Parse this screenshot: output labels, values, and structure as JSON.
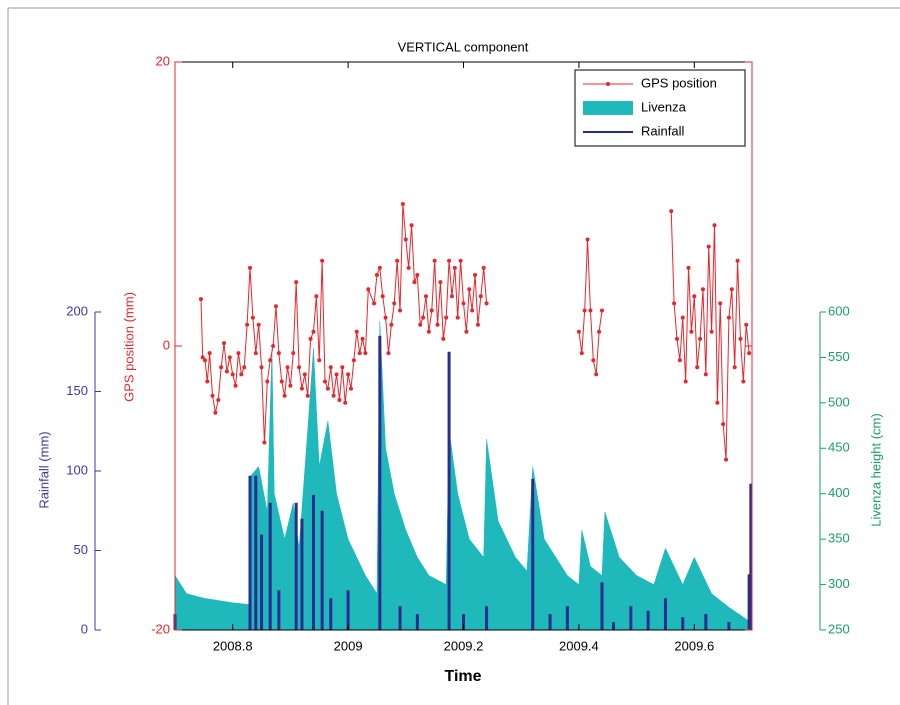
{
  "chart_data": {
    "type": "line",
    "title": "VERTICAL component",
    "xlabel": "Time",
    "ylabel": "GPS position (mm)",
    "y2label": "Livenza height (cm)",
    "y3label": "Rainfall (mm)",
    "xlim": [
      2008.7,
      2009.7
    ],
    "xticks": [
      2008.8,
      2009,
      2009.2,
      2009.4,
      2009.6
    ],
    "ylim": [
      -20,
      20
    ],
    "yticks": [
      -20,
      0,
      20
    ],
    "y2lim": [
      250,
      600
    ],
    "y2ticks": [
      250,
      300,
      350,
      400,
      450,
      500,
      550,
      600
    ],
    "y3lim": [
      0,
      200
    ],
    "y3ticks": [
      0,
      50,
      100,
      150,
      200
    ],
    "legend": "upper right",
    "grid": false,
    "series": [
      {
        "name": "GPS position",
        "type": "line",
        "color": "#e8262b",
        "x": [
          2008.745,
          2008.748,
          2008.752,
          2008.756,
          2008.76,
          2008.765,
          2008.77,
          2008.775,
          2008.78,
          2008.785,
          2008.79,
          2008.795,
          2008.8,
          2008.805,
          2008.81,
          2008.815,
          2008.82,
          2008.825,
          2008.83,
          2008.835,
          2008.84,
          2008.845,
          2008.85,
          2008.855,
          2008.86,
          2008.865,
          2008.87,
          2008.875,
          2008.88,
          2008.885,
          2008.89,
          2008.895,
          2008.9,
          2008.905,
          2008.91,
          2008.915,
          2008.92,
          2008.925,
          2008.93,
          2008.935,
          2008.94,
          2008.945,
          2008.95,
          2008.955,
          2008.96,
          2008.965,
          2008.97,
          2008.975,
          2008.98,
          2008.985,
          2008.99,
          2008.995,
          2009.0,
          2009.005,
          2009.01,
          2009.015,
          2009.02,
          2009.025,
          2009.03,
          2009.035,
          2009.045,
          2009.05,
          2009.055,
          2009.06,
          2009.065,
          2009.07,
          2009.075,
          2009.08,
          2009.085,
          2009.09,
          2009.095,
          2009.1,
          2009.105,
          2009.11,
          2009.115,
          2009.12,
          2009.125,
          2009.13,
          2009.135,
          2009.14,
          2009.145,
          2009.15,
          2009.155,
          2009.16,
          2009.165,
          2009.17,
          2009.175,
          2009.18,
          2009.185,
          2009.19,
          2009.195,
          2009.2,
          2009.205,
          2009.21,
          2009.215,
          2009.22,
          2009.225,
          2009.23,
          2009.235,
          2009.24,
          2009.32,
          2009.4,
          2009.405,
          2009.41,
          2009.415,
          2009.42,
          2009.425,
          2009.43,
          2009.435,
          2009.44,
          2009.5,
          2009.56,
          2009.565,
          2009.57,
          2009.575,
          2009.58,
          2009.585,
          2009.59,
          2009.595,
          2009.6,
          2009.605,
          2009.61,
          2009.615,
          2009.62,
          2009.625,
          2009.63,
          2009.635,
          2009.64,
          2009.645,
          2009.65,
          2009.655,
          2009.66,
          2009.665,
          2009.67,
          2009.675,
          2009.68,
          2009.685,
          2009.69,
          2009.695
        ],
        "values": [
          3.3,
          -0.8,
          -1.0,
          -2.5,
          -0.5,
          -3.5,
          -4.7,
          -3.8,
          -1.5,
          0.2,
          -1.8,
          -0.8,
          -2.0,
          -2.8,
          -0.5,
          -2.0,
          -1.5,
          1.5,
          5.5,
          2.0,
          -0.5,
          1.5,
          -1.5,
          -6.8,
          -2.5,
          -1.0,
          0,
          2.8,
          -0.5,
          -2.5,
          -3.5,
          -1.5,
          -2.8,
          -0.5,
          4.5,
          -1.5,
          -3.0,
          -2.0,
          -3.5,
          0.5,
          1.0,
          3.5,
          -1.0,
          6.0,
          -2.5,
          -3.0,
          -1.5,
          -3.5,
          -2.0,
          -3.8,
          -1.5,
          -4.0,
          -2.0,
          -3.0,
          -1.0,
          1.0,
          -0.5,
          0.5,
          -0.5,
          4.0,
          3.0,
          5.0,
          5.5,
          3.5,
          2.0,
          -0.5,
          1.5,
          3.0,
          6.0,
          2.5,
          10.0,
          7.5,
          5.5,
          8.5,
          4.5,
          5.0,
          1.5,
          2.0,
          3.5,
          1.0,
          2.5,
          6.0,
          1.5,
          4.5,
          0.5,
          2.0,
          6.0,
          3.5,
          5.5,
          2.0,
          6.0,
          3.0,
          1.0,
          4.0,
          2.5,
          5.0,
          1.5,
          3.5,
          5.5,
          3.0,
          null,
          1.0,
          -0.5,
          2.5,
          7.5,
          2.5,
          -1.0,
          -2.0,
          1.0,
          2.5,
          null,
          9.5,
          3.0,
          0.5,
          -1.0,
          2.0,
          -2.5,
          5.5,
          1.0,
          3.5,
          -1.5,
          0.5,
          4.0,
          -2.0,
          7.0,
          1.0,
          8.5,
          -4.0,
          3.0,
          -5.5,
          -8.0,
          2.0,
          4.0,
          -1.5,
          6.0,
          0.5,
          -2.5,
          1.5,
          -0.5
        ]
      },
      {
        "name": "Livenza",
        "type": "area",
        "axis": "y2",
        "color": "#1fb8bb",
        "x": [
          2008.7,
          2008.72,
          2008.75,
          2008.8,
          2008.83,
          2008.832,
          2008.845,
          2008.86,
          2008.868,
          2008.872,
          2008.89,
          2008.905,
          2008.915,
          2008.93,
          2008.94,
          2008.95,
          2008.965,
          2008.98,
          2009.0,
          2009.03,
          2009.05,
          2009.055,
          2009.065,
          2009.08,
          2009.1,
          2009.12,
          2009.14,
          2009.17,
          2009.175,
          2009.19,
          2009.21,
          2009.235,
          2009.24,
          2009.26,
          2009.29,
          2009.31,
          2009.32,
          2009.34,
          2009.38,
          2009.4,
          2009.405,
          2009.42,
          2009.44,
          2009.445,
          2009.47,
          2009.5,
          2009.53,
          2009.55,
          2009.58,
          2009.6,
          2009.63,
          2009.66,
          2009.69,
          2009.7
        ],
        "values": [
          310,
          290,
          285,
          280,
          278,
          420,
          430,
          380,
          560,
          400,
          350,
          390,
          340,
          470,
          560,
          430,
          480,
          400,
          350,
          310,
          290,
          590,
          450,
          400,
          360,
          330,
          310,
          300,
          470,
          400,
          350,
          330,
          460,
          370,
          330,
          315,
          430,
          350,
          310,
          300,
          360,
          320,
          310,
          380,
          330,
          310,
          300,
          340,
          300,
          330,
          290,
          275,
          262,
          258
        ]
      },
      {
        "name": "Rainfall",
        "type": "bar",
        "axis": "y3",
        "color": "#2a2d8f",
        "x": [
          2008.7,
          2008.83,
          2008.84,
          2008.85,
          2008.865,
          2008.88,
          2008.91,
          2008.92,
          2008.94,
          2008.955,
          2008.97,
          2009.0,
          2009.055,
          2009.09,
          2009.12,
          2009.175,
          2009.2,
          2009.24,
          2009.32,
          2009.35,
          2009.38,
          2009.44,
          2009.46,
          2009.49,
          2009.52,
          2009.55,
          2009.58,
          2009.62,
          2009.66,
          2009.695,
          2009.698
        ],
        "values": [
          10,
          97,
          97,
          60,
          80,
          25,
          80,
          70,
          85,
          75,
          20,
          25,
          185,
          15,
          10,
          175,
          10,
          15,
          95,
          10,
          15,
          30,
          5,
          15,
          12,
          20,
          8,
          10,
          5,
          35,
          92
        ]
      }
    ]
  }
}
